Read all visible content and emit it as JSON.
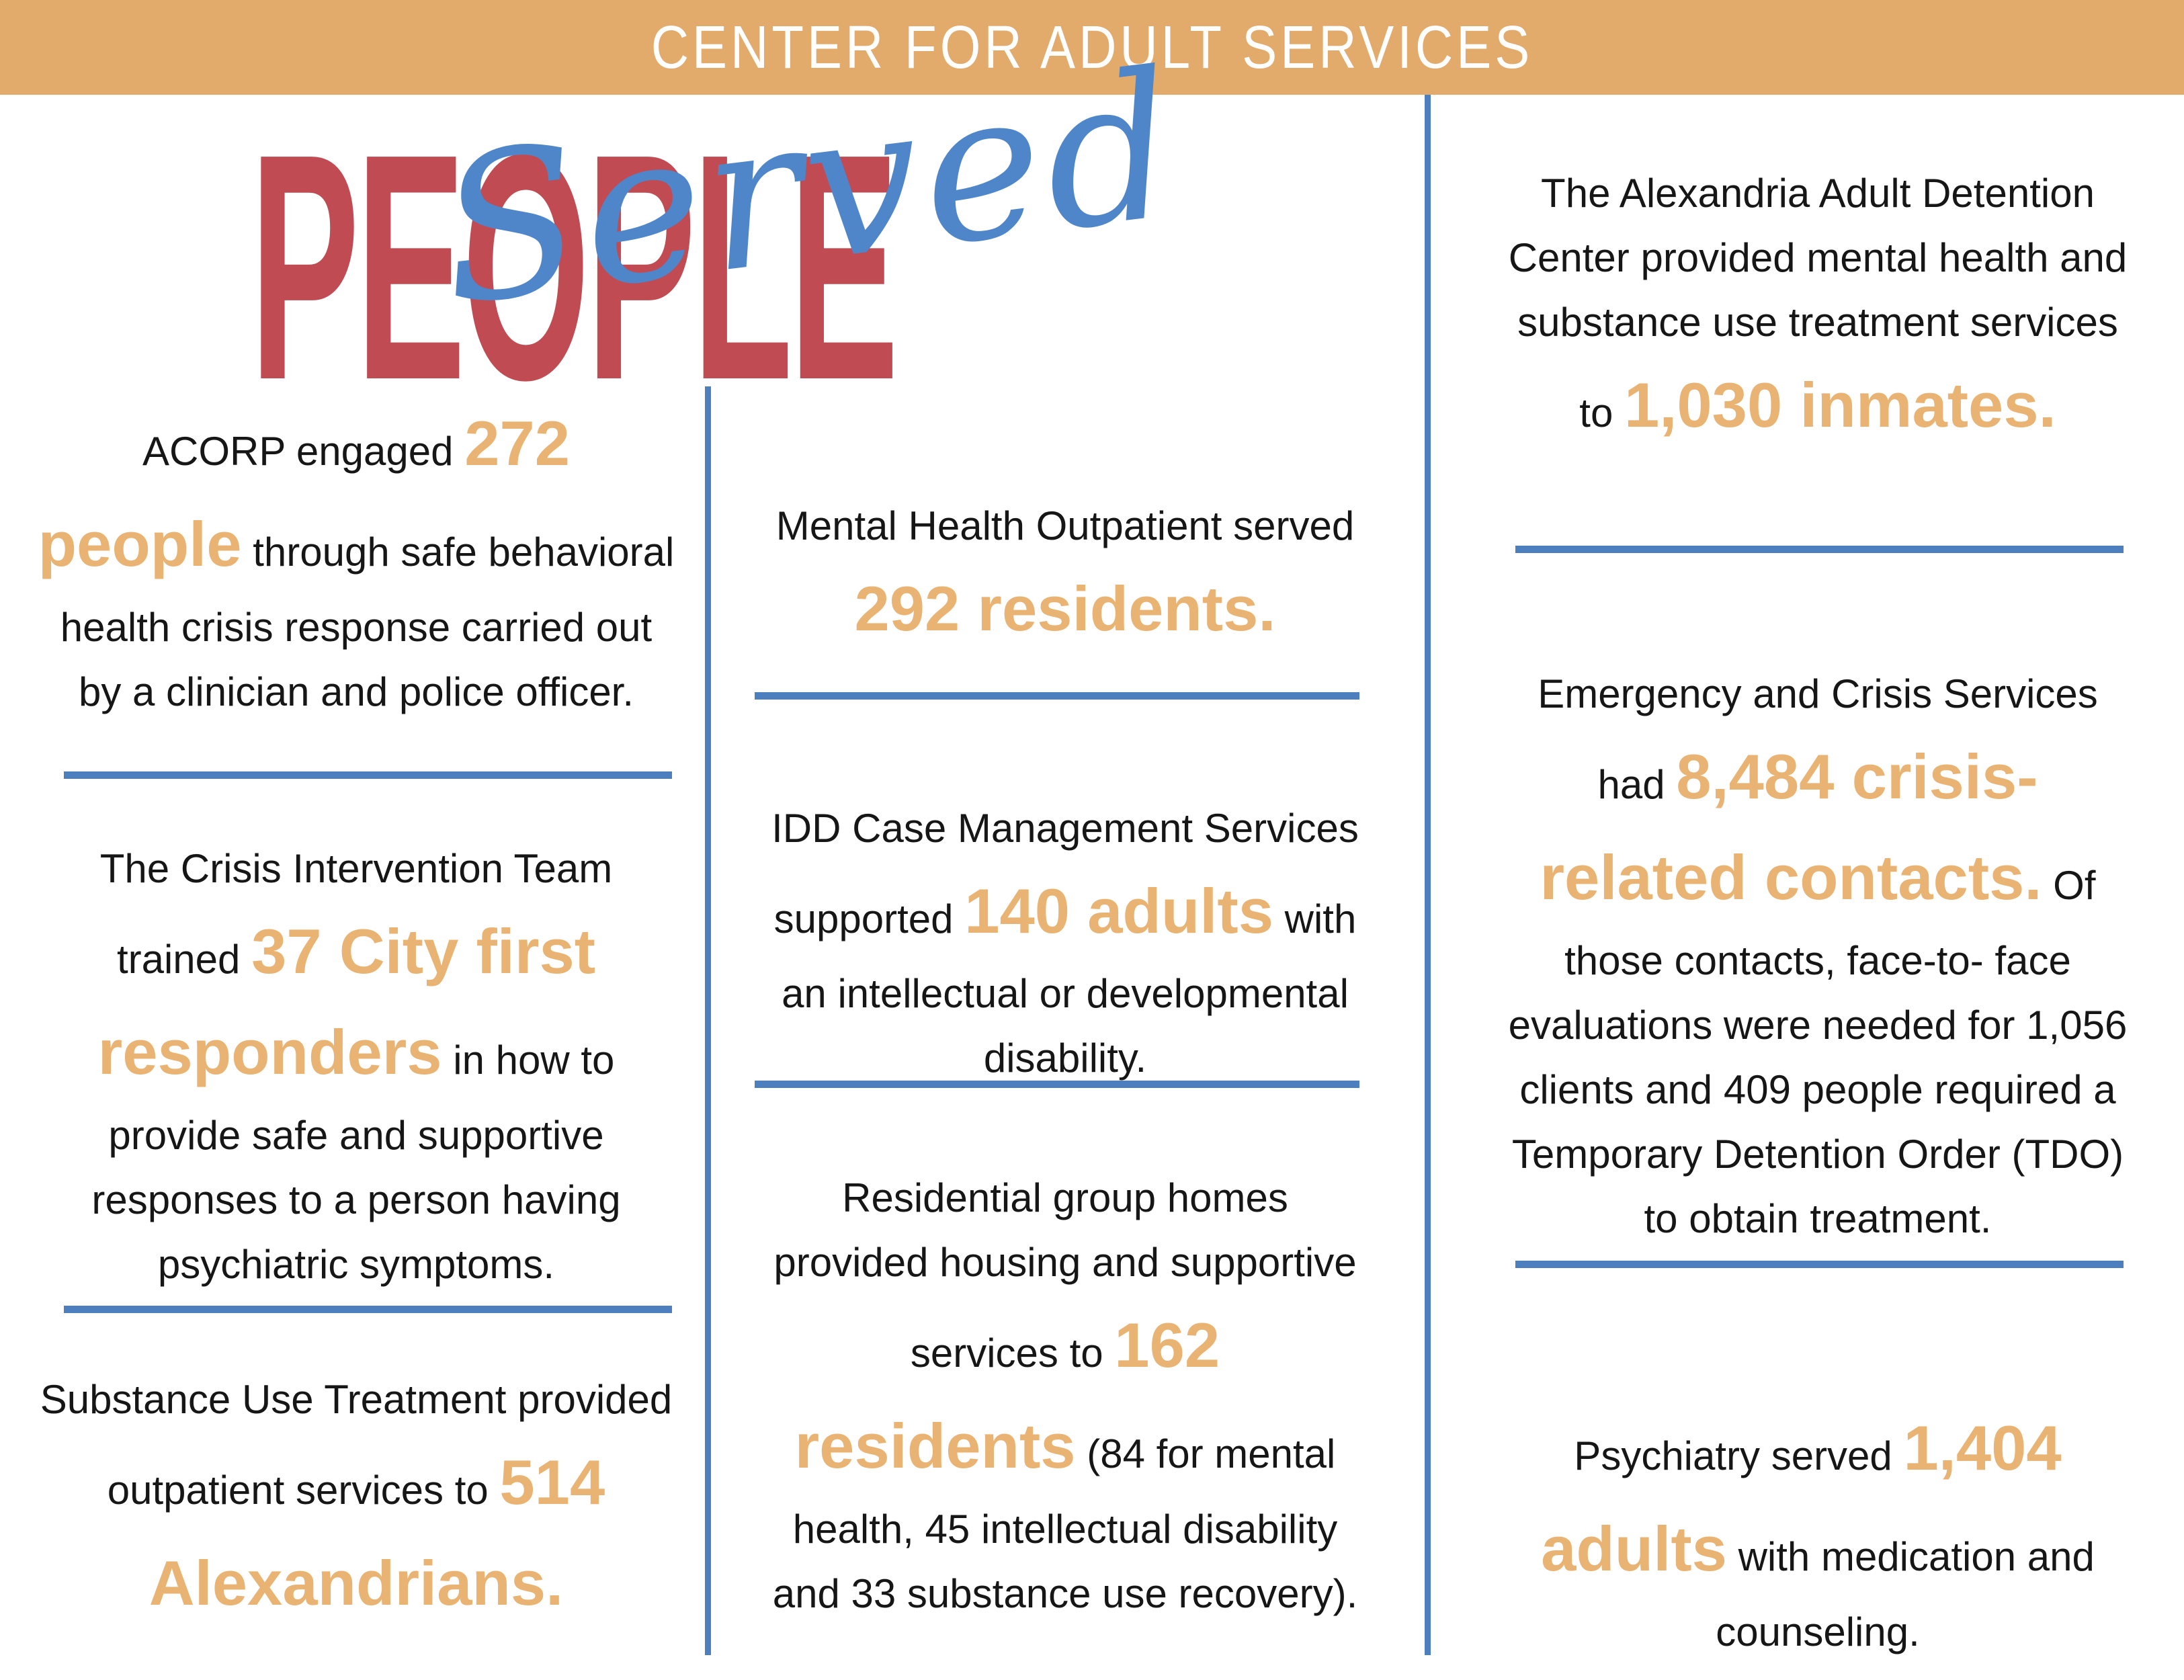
{
  "banner": {
    "title": "CENTER FOR ADULT SERVICES"
  },
  "title": {
    "word_main": "PEOPLE",
    "word_script": "Served"
  },
  "colors": {
    "banner_bg": "#E2AB6B",
    "accent_text": "#E9B473",
    "title_red": "#C04B52",
    "divider_blue": "#4D7EBE",
    "script_blue": "#4E86C9",
    "body_text": "#161616"
  },
  "columns": {
    "left": {
      "blocks": [
        {
          "segments": [
            {
              "t": "ACORP engaged ",
              "s": "n"
            },
            {
              "t": "272 people",
              "s": "a"
            },
            {
              "t": " through safe behavioral health crisis response carried out by a clinician and police officer.",
              "s": "n"
            }
          ]
        },
        {
          "segments": [
            {
              "t": "The Crisis Intervention Team trained ",
              "s": "n"
            },
            {
              "t": "37 City first responders",
              "s": "a"
            },
            {
              "t": " in how to provide safe and supportive responses to a person having psychiatric symptoms.",
              "s": "n"
            }
          ]
        },
        {
          "segments": [
            {
              "t": "Substance Use Treatment provided outpatient services to ",
              "s": "n"
            },
            {
              "t": "514 Alexandrians.",
              "s": "a"
            }
          ]
        }
      ]
    },
    "middle": {
      "blocks": [
        {
          "segments": [
            {
              "t": "Mental Health Outpatient served ",
              "s": "n"
            },
            {
              "t": "292 residents.",
              "s": "a"
            }
          ]
        },
        {
          "segments": [
            {
              "t": "IDD Case Management Services supported ",
              "s": "n"
            },
            {
              "t": "140 adults",
              "s": "a"
            },
            {
              "t": " with an intellectual or developmental disability.",
              "s": "n"
            }
          ]
        },
        {
          "segments": [
            {
              "t": "Residential group homes provided housing and supportive services to ",
              "s": "n"
            },
            {
              "t": "162 residents",
              "s": "a"
            },
            {
              "t": " (84 for mental health, 45 intellectual disability and 33 substance use recovery).",
              "s": "n"
            }
          ]
        }
      ]
    },
    "right": {
      "blocks": [
        {
          "segments": [
            {
              "t": "The Alexandria Adult Detention Center provided mental health and substance use treatment services to ",
              "s": "n"
            },
            {
              "t": "1,030 inmates.",
              "s": "a"
            }
          ]
        },
        {
          "segments": [
            {
              "t": "Emergency and Crisis Services had ",
              "s": "n"
            },
            {
              "t": "8,484 crisis-related contacts.",
              "s": "a"
            },
            {
              "t": " Of those contacts, face-to- face evaluations were needed for 1,056 clients and 409 people required a Temporary Detention Order (TDO) to obtain treatment.",
              "s": "n"
            }
          ]
        },
        {
          "segments": [
            {
              "t": "Psychiatry served ",
              "s": "n"
            },
            {
              "t": "1,404 adults",
              "s": "a"
            },
            {
              "t": " with medication and counseling.",
              "s": "n"
            }
          ]
        }
      ]
    }
  }
}
